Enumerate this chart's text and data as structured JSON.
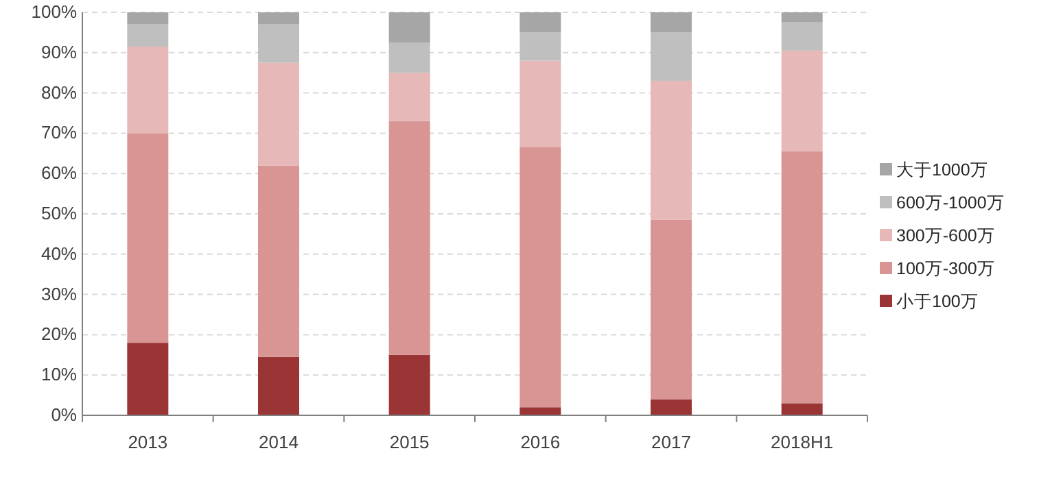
{
  "chart_data": {
    "type": "bar",
    "stacked": true,
    "categories": [
      "2013",
      "2014",
      "2015",
      "2016",
      "2017",
      "2018H1"
    ],
    "series": [
      {
        "name": "小于100万",
        "color": "#9b3535",
        "values": [
          18,
          14.5,
          15,
          2,
          4,
          3
        ]
      },
      {
        "name": "100万-300万",
        "color": "#d99594",
        "values": [
          52,
          47.5,
          58,
          64.5,
          44.5,
          62.5
        ]
      },
      {
        "name": "300万-600万",
        "color": "#e6b8b7",
        "values": [
          21.5,
          25.5,
          12,
          21.5,
          34.5,
          25
        ]
      },
      {
        "name": "600万-1000万",
        "color": "#bfbfbf",
        "values": [
          5.5,
          9.5,
          7.5,
          7,
          12,
          7
        ]
      },
      {
        "name": "大于1000万",
        "color": "#a6a6a6",
        "values": [
          3,
          3,
          7.5,
          5,
          5,
          2.5
        ]
      }
    ],
    "ylim": [
      0,
      100
    ],
    "yticks": [
      {
        "value": 0,
        "label": "0%"
      },
      {
        "value": 10,
        "label": "10%"
      },
      {
        "value": 20,
        "label": "20%"
      },
      {
        "value": 30,
        "label": "30%"
      },
      {
        "value": 40,
        "label": "40%"
      },
      {
        "value": 50,
        "label": "50%"
      },
      {
        "value": 60,
        "label": "60%"
      },
      {
        "value": 70,
        "label": "70%"
      },
      {
        "value": 80,
        "label": "80%"
      },
      {
        "value": 90,
        "label": "90%"
      },
      {
        "value": 100,
        "label": "100%"
      }
    ],
    "grid": "y",
    "legend": "right"
  }
}
